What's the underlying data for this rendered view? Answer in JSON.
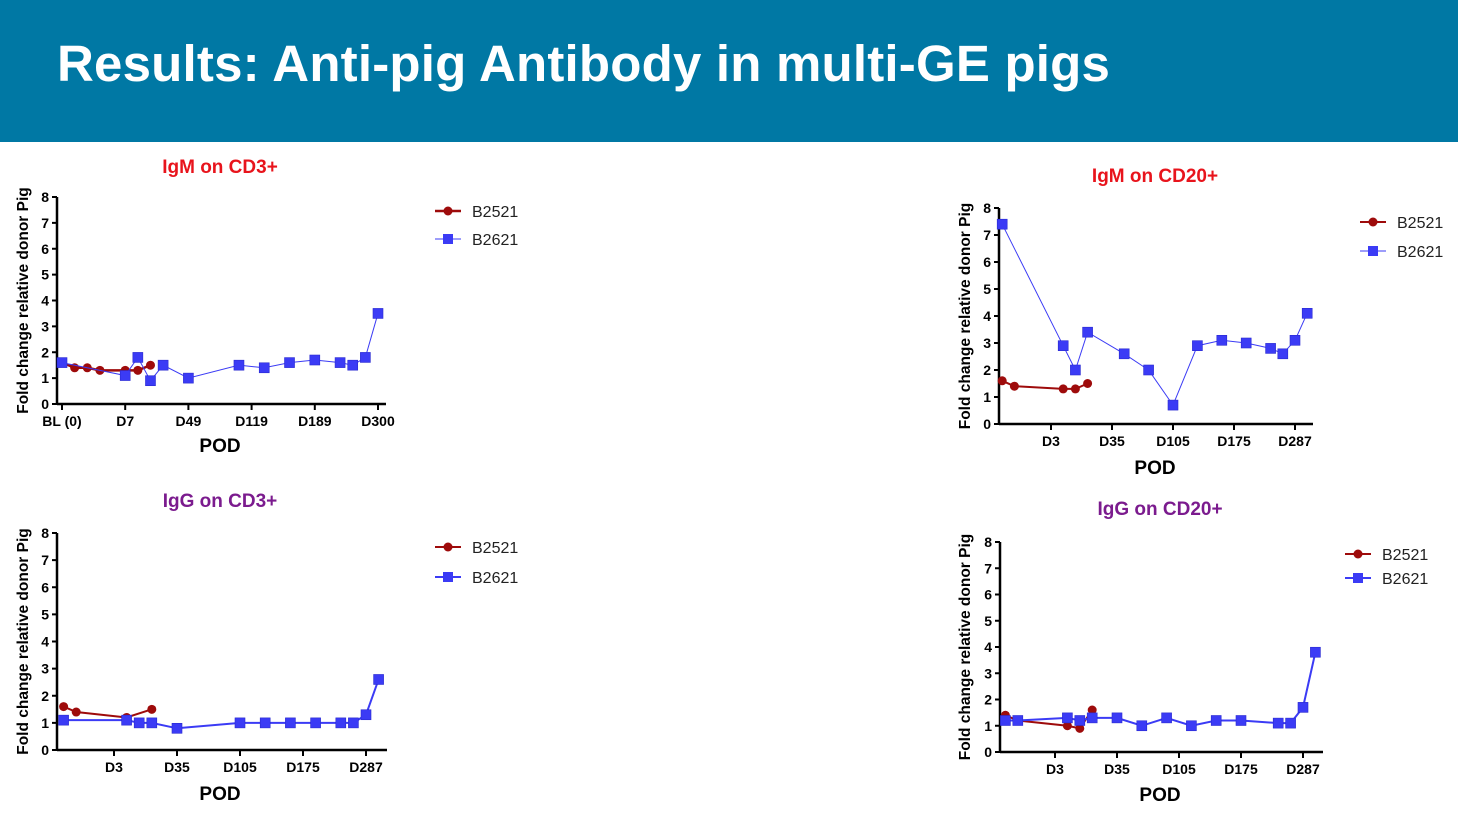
{
  "slide": {
    "title": "Results: Anti-pig Antibody in multi-GE pigs"
  },
  "colors": {
    "header": "#0078a4",
    "B2521": "#9e0b0b",
    "B2621": "#3b3bf5",
    "igm_title": "#e8141c",
    "igg_title": "#7b1b8e"
  },
  "chart_data": [
    {
      "type": "line",
      "title": "IgM on CD3+",
      "title_color": "igm_title",
      "xlabel": "POD",
      "ylabel": "Fold change relative donor Pig",
      "ylim": [
        0,
        8
      ],
      "yticks": [
        "0",
        "1",
        "2",
        "3",
        "4",
        "5",
        "6",
        "7",
        "8"
      ],
      "xticks": [
        {
          "x": 0,
          "label": "BL (0)"
        },
        {
          "x": 5,
          "label": "D7"
        },
        {
          "x": 10,
          "label": "D49"
        },
        {
          "x": 15,
          "label": "D119"
        },
        {
          "x": 20,
          "label": "D189"
        },
        {
          "x": 25,
          "label": "D300"
        }
      ],
      "legend": "top-right",
      "series": [
        {
          "name": "B2521",
          "marker": "circle",
          "x": [
            0,
            1,
            2,
            3,
            5,
            6,
            7
          ],
          "y": [
            1.6,
            1.4,
            1.4,
            1.3,
            1.3,
            1.3,
            1.5
          ]
        },
        {
          "name": "B2621",
          "marker": "square",
          "x": [
            0,
            5,
            6,
            7,
            8,
            10,
            14,
            16,
            18,
            20,
            22,
            23,
            24,
            25
          ],
          "y": [
            1.6,
            1.1,
            1.8,
            0.9,
            1.5,
            1.0,
            1.5,
            1.4,
            1.6,
            1.7,
            1.6,
            1.5,
            1.8,
            3.5
          ]
        }
      ]
    },
    {
      "type": "line",
      "title": "IgM on CD20+",
      "title_color": "igm_title",
      "xlabel": "POD",
      "ylabel": "Fold change relative donor Pig",
      "ylim": [
        0,
        8
      ],
      "yticks": [
        "0",
        "1",
        "2",
        "3",
        "4",
        "5",
        "6",
        "7",
        "8"
      ],
      "xticks": [
        {
          "x": 5,
          "label": "D3"
        },
        {
          "x": 10,
          "label": "D35"
        },
        {
          "x": 15,
          "label": "D105"
        },
        {
          "x": 20,
          "label": "D175"
        },
        {
          "x": 25,
          "label": "D287"
        }
      ],
      "legend": "top-right",
      "series": [
        {
          "name": "B2521",
          "marker": "circle",
          "x": [
            1,
            2,
            6,
            7,
            8
          ],
          "y": [
            1.6,
            1.4,
            1.3,
            1.3,
            1.5
          ]
        },
        {
          "name": "B2621",
          "marker": "square",
          "x": [
            1,
            6,
            7,
            8,
            11,
            13,
            15,
            17,
            19,
            21,
            23,
            24,
            25,
            26
          ],
          "y": [
            7.4,
            2.9,
            2.0,
            3.4,
            2.6,
            2.0,
            0.7,
            2.9,
            3.1,
            3.0,
            2.8,
            2.6,
            3.1,
            4.1
          ]
        }
      ]
    },
    {
      "type": "line",
      "title": "IgG on CD3+",
      "title_color": "igg_title",
      "xlabel": "POD",
      "ylabel": "Fold change relative donor Pig",
      "ylim": [
        0,
        8
      ],
      "yticks": [
        "0",
        "1",
        "2",
        "3",
        "4",
        "5",
        "6",
        "7",
        "8"
      ],
      "xticks": [
        {
          "x": 5,
          "label": "D3"
        },
        {
          "x": 10,
          "label": "D35"
        },
        {
          "x": 15,
          "label": "D105"
        },
        {
          "x": 20,
          "label": "D175"
        },
        {
          "x": 25,
          "label": "D287"
        }
      ],
      "legend": "top-right",
      "series": [
        {
          "name": "B2521",
          "marker": "circle",
          "x": [
            1,
            2,
            6,
            8
          ],
          "y": [
            1.6,
            1.4,
            1.2,
            1.5
          ]
        },
        {
          "name": "B2621",
          "marker": "square",
          "x": [
            1,
            6,
            7,
            8,
            10,
            15,
            17,
            19,
            21,
            23,
            24,
            25,
            26
          ],
          "y": [
            1.1,
            1.1,
            1.0,
            1.0,
            0.8,
            1.0,
            1.0,
            1.0,
            1.0,
            1.0,
            1.0,
            1.3,
            2.6
          ]
        }
      ]
    },
    {
      "type": "line",
      "title": "IgG on CD20+",
      "title_color": "igg_title",
      "xlabel": "POD",
      "ylabel": "Fold change relative donor Pig",
      "ylim": [
        0,
        8
      ],
      "yticks": [
        "0",
        "1",
        "2",
        "3",
        "4",
        "5",
        "6",
        "7",
        "8"
      ],
      "xticks": [
        {
          "x": 5,
          "label": "D3"
        },
        {
          "x": 10,
          "label": "D35"
        },
        {
          "x": 15,
          "label": "D105"
        },
        {
          "x": 20,
          "label": "D175"
        },
        {
          "x": 25,
          "label": "D287"
        }
      ],
      "legend": "top-right",
      "series": [
        {
          "name": "B2521",
          "marker": "circle",
          "x": [
            1,
            2,
            6,
            7,
            8
          ],
          "y": [
            1.4,
            1.2,
            1.0,
            0.9,
            1.6
          ]
        },
        {
          "name": "B2621",
          "marker": "square",
          "x": [
            1,
            2,
            6,
            7,
            8,
            10,
            12,
            14,
            16,
            18,
            20,
            23,
            24,
            25,
            26
          ],
          "y": [
            1.2,
            1.2,
            1.3,
            1.2,
            1.3,
            1.3,
            1.0,
            1.3,
            1.0,
            1.2,
            1.2,
            1.1,
            1.1,
            1.7,
            3.8
          ]
        }
      ]
    }
  ]
}
